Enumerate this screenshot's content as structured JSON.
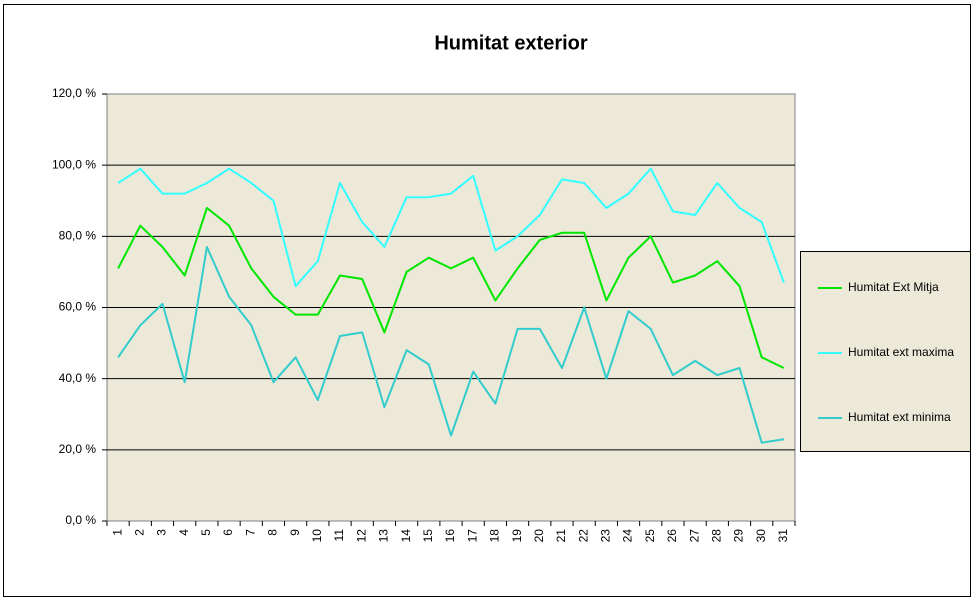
{
  "chart_data": {
    "type": "line",
    "title": "Humitat exterior",
    "categories": [
      "1",
      "2",
      "3",
      "4",
      "5",
      "6",
      "7",
      "8",
      "9",
      "10",
      "11",
      "12",
      "13",
      "14",
      "15",
      "16",
      "17",
      "18",
      "19",
      "20",
      "21",
      "22",
      "23",
      "24",
      "25",
      "26",
      "27",
      "28",
      "29",
      "30",
      "31"
    ],
    "series": [
      {
        "name": "Humitat Ext Mitja",
        "color": "#00e600",
        "values": [
          71,
          83,
          77,
          69,
          88,
          83,
          71,
          63,
          58,
          58,
          69,
          68,
          53,
          70,
          74,
          71,
          74,
          62,
          71,
          79,
          81,
          81,
          62,
          74,
          80,
          67,
          69,
          73,
          66,
          46,
          43
        ]
      },
      {
        "name": "Humitat ext maxima",
        "color": "#33ffff",
        "values": [
          95,
          99,
          92,
          92,
          95,
          99,
          95,
          90,
          66,
          73,
          95,
          84,
          77,
          91,
          91,
          92,
          97,
          76,
          80,
          86,
          96,
          95,
          88,
          92,
          99,
          87,
          86,
          95,
          88,
          84,
          67
        ]
      },
      {
        "name": "Humitat ext minima",
        "color": "#33cccc",
        "values": [
          46,
          55,
          61,
          39,
          77,
          63,
          55,
          39,
          46,
          34,
          52,
          53,
          32,
          48,
          44,
          24,
          42,
          33,
          54,
          54,
          43,
          60,
          40,
          59,
          54,
          41,
          45,
          41,
          43,
          22,
          23
        ]
      }
    ],
    "ylim": [
      0,
      120
    ],
    "yticks": [
      {
        "value": 0,
        "label": "0,0 %"
      },
      {
        "value": 20,
        "label": "20,0 %"
      },
      {
        "value": 40,
        "label": "40,0 %"
      },
      {
        "value": 60,
        "label": "60,0 %"
      },
      {
        "value": 80,
        "label": "80,0 %"
      },
      {
        "value": 100,
        "label": "100,0 %"
      },
      {
        "value": 120,
        "label": "120,0 %"
      }
    ],
    "grid": true,
    "legend": "right"
  }
}
